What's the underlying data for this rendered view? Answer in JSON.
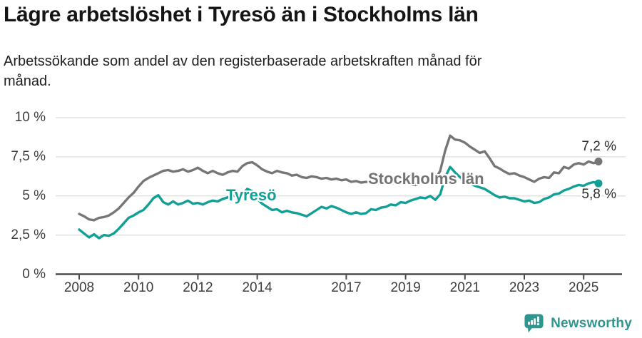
{
  "header": {
    "title": "Lägre arbetslöshet i Tyresö än i Stockholms län",
    "subtitle": "Arbetssökande som andel av den registerbaserade arbetskraften månad för månad."
  },
  "chart_data": {
    "type": "line",
    "title": "Lägre arbetslöshet i Tyresö än i Stockholms län",
    "ylabel": "",
    "xlabel": "",
    "ylim": [
      0,
      10
    ],
    "grid": true,
    "legend": "inline-labels",
    "x_unit": "months since January 2008 (monthly share of labour force)",
    "x": [
      0,
      2,
      4,
      6,
      8,
      10,
      12,
      14,
      16,
      18,
      20,
      22,
      24,
      26,
      28,
      30,
      32,
      34,
      36,
      38,
      40,
      42,
      44,
      46,
      48,
      50,
      52,
      54,
      56,
      58,
      60,
      62,
      64,
      66,
      68,
      70,
      72,
      74,
      76,
      78,
      80,
      82,
      84,
      86,
      88,
      90,
      92,
      94,
      96,
      98,
      100,
      102,
      104,
      106,
      108,
      110,
      112,
      114,
      116,
      118,
      120,
      122,
      124,
      126,
      128,
      130,
      132,
      134,
      136,
      138,
      140,
      142,
      144,
      146,
      148,
      150,
      152,
      154,
      156,
      158,
      160,
      162,
      164,
      166,
      168,
      170,
      172,
      174,
      176,
      178,
      180,
      182,
      184,
      186,
      188,
      190,
      192,
      194,
      196,
      198,
      200,
      202,
      204,
      206,
      208,
      210
    ],
    "yticks": [
      {
        "value": 0,
        "label": "0 %"
      },
      {
        "value": 2.5,
        "label": "2,5 %"
      },
      {
        "value": 5,
        "label": "5 %"
      },
      {
        "value": 7.5,
        "label": "7,5 %"
      },
      {
        "value": 10,
        "label": "10 %"
      }
    ],
    "xticks": [
      {
        "year": 2008,
        "label": "2008"
      },
      {
        "year": 2010,
        "label": "2010"
      },
      {
        "year": 2012,
        "label": "2012"
      },
      {
        "year": 2014,
        "label": "2014"
      },
      {
        "year": 2017,
        "label": "2017"
      },
      {
        "year": 2019,
        "label": "2019"
      },
      {
        "year": 2021,
        "label": "2021"
      },
      {
        "year": 2023,
        "label": "2023"
      },
      {
        "year": 2025,
        "label": "2025"
      }
    ],
    "series": [
      {
        "name": "Stockholms län",
        "color": "#767676",
        "end_label": "7,2 %",
        "end_value": 7.2,
        "values": [
          3.85,
          3.7,
          3.5,
          3.45,
          3.6,
          3.65,
          3.75,
          3.95,
          4.2,
          4.55,
          4.9,
          5.2,
          5.6,
          5.95,
          6.15,
          6.3,
          6.45,
          6.6,
          6.65,
          6.55,
          6.6,
          6.7,
          6.55,
          6.65,
          6.8,
          6.6,
          6.45,
          6.6,
          6.45,
          6.35,
          6.5,
          6.6,
          6.55,
          6.9,
          7.1,
          7.15,
          6.95,
          6.7,
          6.55,
          6.45,
          6.6,
          6.5,
          6.45,
          6.3,
          6.35,
          6.2,
          6.15,
          6.25,
          6.2,
          6.1,
          6.15,
          6.05,
          6.1,
          6.0,
          6.05,
          5.9,
          5.95,
          5.85,
          5.9,
          5.85,
          5.9,
          5.85,
          5.9,
          5.85,
          5.8,
          5.85,
          5.8,
          5.75,
          5.7,
          5.8,
          5.9,
          6.0,
          6.05,
          6.6,
          7.9,
          8.85,
          8.6,
          8.55,
          8.4,
          8.15,
          7.95,
          7.75,
          7.85,
          7.4,
          6.9,
          6.75,
          6.55,
          6.4,
          6.45,
          6.3,
          6.2,
          6.05,
          5.9,
          6.1,
          6.2,
          6.15,
          6.5,
          6.45,
          6.85,
          6.75,
          7.0,
          7.1,
          7.0,
          7.2,
          7.1,
          7.2
        ]
      },
      {
        "name": "Tyresö",
        "color": "#12a096",
        "end_label": "5,8 %",
        "end_value": 5.8,
        "values": [
          2.85,
          2.6,
          2.35,
          2.55,
          2.3,
          2.5,
          2.45,
          2.6,
          2.9,
          3.25,
          3.6,
          3.75,
          3.95,
          4.1,
          4.45,
          4.85,
          5.05,
          4.6,
          4.45,
          4.65,
          4.45,
          4.55,
          4.7,
          4.5,
          4.55,
          4.45,
          4.6,
          4.7,
          4.65,
          4.8,
          4.9,
          5.05,
          4.95,
          5.1,
          5.45,
          5.3,
          4.8,
          4.5,
          4.3,
          4.1,
          4.15,
          3.95,
          4.05,
          3.95,
          3.9,
          3.8,
          3.7,
          3.9,
          4.1,
          4.3,
          4.2,
          4.35,
          4.25,
          4.1,
          3.95,
          3.85,
          3.95,
          3.85,
          3.9,
          4.15,
          4.1,
          4.25,
          4.3,
          4.45,
          4.4,
          4.6,
          4.55,
          4.7,
          4.8,
          4.9,
          4.85,
          5.0,
          4.75,
          5.1,
          6.2,
          6.85,
          6.5,
          6.2,
          5.95,
          5.8,
          5.65,
          5.55,
          5.45,
          5.25,
          5.05,
          4.9,
          4.95,
          4.85,
          4.85,
          4.75,
          4.65,
          4.7,
          4.55,
          4.6,
          4.8,
          4.9,
          5.1,
          5.15,
          5.35,
          5.45,
          5.6,
          5.7,
          5.65,
          5.8,
          5.88,
          5.8
        ]
      }
    ]
  },
  "footer": {
    "brand": "Newsworthy",
    "brand_color": "#2f968f",
    "icon": "newsworthy-chart-bubble-icon"
  }
}
